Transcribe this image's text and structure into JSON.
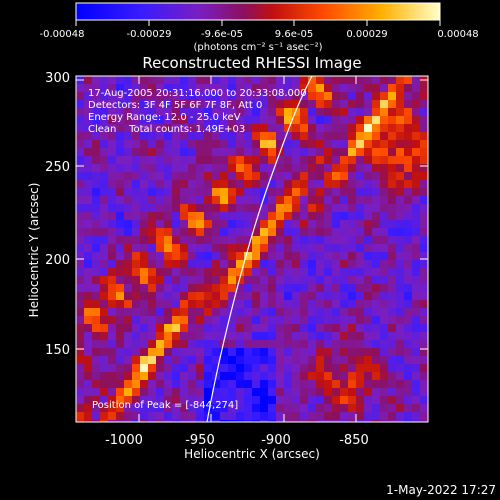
{
  "colorbar": {
    "tick_labels": [
      "-0.00048",
      "-0.00029",
      "-9.6e-05",
      "9.6e-05",
      "0.00029",
      "0.00048"
    ],
    "unit_label": "(photons cm⁻² s⁻¹ asec⁻²)"
  },
  "plot": {
    "title": "Reconstructed RHESSI Image",
    "xlabel": "Heliocentric X (arcsec)",
    "ylabel": "Heliocentric Y (arcsec)",
    "xticks": [
      "-1000",
      "-950",
      "-900",
      "-850"
    ],
    "yticks": [
      "300",
      "250",
      "200",
      "150"
    ],
    "annotations": [
      "17-Aug-2005 20:31:16.000 to 20:33:08.000",
      "Detectors: 3F 4F 5F 6F 7F 8F, Att 0",
      "Energy Range: 12.0 - 25.0 keV",
      "Clean    Total counts: 1.49E+03"
    ],
    "peak_label": "Position of Peak = [-844,274]"
  },
  "footer": {
    "timestamp": "1-May-2022 17:27"
  },
  "colors": {
    "background": "#000000",
    "limb": "#ffffff"
  }
}
